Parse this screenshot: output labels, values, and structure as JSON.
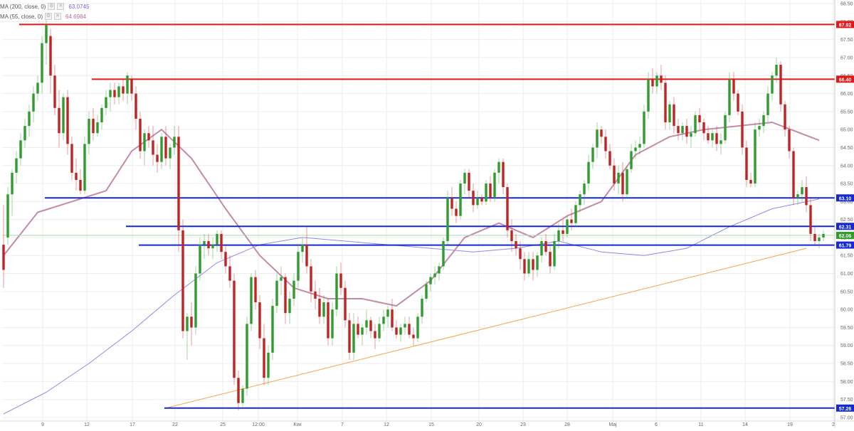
{
  "indicators": [
    {
      "label": "MA (200, close, 0)",
      "value": "63.0745",
      "color": "#6f66e6"
    },
    {
      "label": "MA (55, close, 0)",
      "value": "64.6984",
      "color": "#b46a9a"
    }
  ],
  "colors": {
    "up": "#2e9d2e",
    "down": "#c42222",
    "resistance": "#e01818",
    "support": "#1428d6",
    "trend": "#f4a64a",
    "ma200": "#8f88ee",
    "ma55": "#c48aa9",
    "grid": "#eeeeee",
    "axis_text": "#666666",
    "crosshair": "#a9d9a9",
    "price_tag": "#2e9d2e"
  },
  "chart_data": {
    "type": "candlestick",
    "title": "",
    "x_tick_labels": [
      "9",
      "12",
      "17",
      "22",
      "25",
      "12:00",
      "Kwi",
      "7",
      "12",
      "15",
      "20",
      "23",
      "28",
      "Maj",
      "6",
      "11",
      "14",
      "19",
      "2"
    ],
    "y_tick_labels": [
      "57.00",
      "57.50",
      "58.00",
      "58.50",
      "59.00",
      "59.50",
      "60.00",
      "60.50",
      "61.00",
      "61.50",
      "62.00",
      "62.50",
      "63.00",
      "63.50",
      "64.00",
      "64.50",
      "65.00",
      "65.50",
      "66.00",
      "66.50",
      "67.00",
      "67.50",
      "68.00",
      "68.50"
    ],
    "ylim": [
      56.9,
      68.6
    ],
    "grid": true,
    "candles": [
      [
        61.8,
        62.9,
        60.6,
        61.1
      ],
      [
        62.0,
        63.4,
        61.8,
        63.2
      ],
      [
        63.2,
        63.9,
        62.6,
        63.8
      ],
      [
        63.8,
        64.4,
        63.5,
        64.2
      ],
      [
        64.2,
        64.9,
        64.0,
        64.7
      ],
      [
        64.7,
        65.3,
        64.5,
        65.1
      ],
      [
        65.1,
        65.7,
        64.8,
        65.5
      ],
      [
        65.5,
        66.2,
        65.2,
        66.0
      ],
      [
        66.0,
        66.5,
        65.8,
        66.3
      ],
      [
        66.3,
        67.6,
        66.0,
        67.4
      ],
      [
        67.4,
        68.2,
        66.8,
        67.9
      ],
      [
        67.6,
        67.8,
        66.0,
        66.5
      ],
      [
        66.5,
        66.8,
        65.4,
        65.6
      ],
      [
        65.6,
        66.1,
        64.5,
        64.9
      ],
      [
        64.9,
        66.0,
        64.7,
        65.9
      ],
      [
        65.9,
        66.1,
        64.3,
        64.6
      ],
      [
        64.6,
        64.8,
        63.6,
        63.8
      ],
      [
        63.8,
        64.2,
        63.3,
        63.6
      ],
      [
        63.6,
        63.9,
        63.2,
        63.3
      ],
      [
        63.3,
        64.8,
        63.2,
        64.6
      ],
      [
        64.6,
        65.5,
        64.3,
        65.3
      ],
      [
        65.3,
        65.6,
        64.7,
        64.9
      ],
      [
        64.9,
        65.4,
        64.8,
        65.2
      ],
      [
        65.2,
        65.7,
        65.0,
        65.6
      ],
      [
        65.6,
        66.1,
        65.4,
        65.9
      ],
      [
        65.9,
        66.3,
        65.5,
        66.1
      ],
      [
        66.1,
        66.3,
        65.7,
        65.9
      ],
      [
        65.9,
        66.3,
        65.7,
        66.2
      ],
      [
        66.2,
        66.4,
        65.8,
        66.0
      ],
      [
        66.0,
        66.6,
        65.7,
        66.5
      ],
      [
        66.4,
        66.5,
        65.8,
        66.0
      ],
      [
        66.0,
        66.2,
        65.0,
        65.3
      ],
      [
        65.3,
        65.5,
        64.2,
        64.4
      ],
      [
        64.4,
        65.0,
        64.0,
        64.9
      ],
      [
        64.9,
        65.1,
        64.5,
        64.7
      ],
      [
        64.7,
        65.1,
        64.0,
        64.3
      ],
      [
        64.3,
        64.6,
        63.8,
        64.1
      ],
      [
        64.1,
        64.9,
        63.9,
        64.8
      ],
      [
        64.8,
        65.1,
        64.0,
        64.2
      ],
      [
        64.2,
        64.6,
        63.9,
        64.5
      ],
      [
        64.5,
        65.1,
        64.3,
        64.8
      ],
      [
        64.8,
        65.1,
        61.6,
        62.2
      ],
      [
        62.2,
        62.5,
        59.2,
        59.4
      ],
      [
        59.4,
        59.9,
        58.6,
        59.8
      ],
      [
        59.8,
        60.2,
        59.0,
        59.5
      ],
      [
        59.5,
        61.2,
        59.3,
        61.0
      ],
      [
        61.0,
        62.0,
        60.8,
        61.8
      ],
      [
        61.8,
        62.1,
        61.4,
        61.9
      ],
      [
        61.9,
        62.1,
        61.5,
        61.7
      ],
      [
        61.7,
        62.0,
        61.4,
        61.8
      ],
      [
        61.8,
        62.2,
        61.6,
        62.1
      ],
      [
        62.1,
        62.2,
        61.4,
        61.6
      ],
      [
        61.6,
        61.8,
        61.0,
        61.2
      ],
      [
        61.2,
        61.5,
        60.6,
        60.8
      ],
      [
        60.8,
        61.0,
        57.9,
        58.1
      ],
      [
        58.1,
        58.3,
        57.2,
        57.4
      ],
      [
        57.4,
        57.9,
        57.3,
        57.8
      ],
      [
        57.8,
        59.8,
        57.6,
        59.6
      ],
      [
        59.6,
        61.0,
        59.4,
        60.9
      ],
      [
        60.9,
        61.1,
        60.0,
        60.2
      ],
      [
        60.2,
        60.4,
        58.9,
        59.2
      ],
      [
        59.2,
        59.6,
        57.9,
        58.1
      ],
      [
        58.1,
        59.0,
        57.9,
        58.8
      ],
      [
        58.8,
        60.3,
        58.6,
        60.1
      ],
      [
        60.1,
        61.0,
        59.9,
        60.8
      ],
      [
        60.8,
        61.2,
        60.4,
        60.9
      ],
      [
        60.9,
        61.0,
        59.6,
        59.9
      ],
      [
        59.9,
        60.5,
        59.6,
        60.3
      ],
      [
        60.3,
        61.0,
        60.1,
        60.8
      ],
      [
        60.8,
        61.8,
        60.6,
        61.6
      ],
      [
        61.6,
        62.0,
        61.3,
        61.8
      ],
      [
        61.8,
        62.3,
        61.0,
        61.2
      ],
      [
        61.2,
        61.4,
        60.2,
        60.5
      ],
      [
        60.5,
        60.8,
        60.0,
        60.3
      ],
      [
        60.3,
        60.6,
        59.6,
        59.8
      ],
      [
        59.8,
        60.4,
        59.6,
        60.2
      ],
      [
        60.2,
        60.3,
        59.0,
        59.2
      ],
      [
        59.2,
        60.2,
        59.0,
        60.0
      ],
      [
        60.0,
        61.2,
        59.8,
        61.0
      ],
      [
        61.0,
        61.3,
        60.4,
        60.6
      ],
      [
        60.6,
        60.8,
        59.5,
        59.7
      ],
      [
        59.7,
        59.9,
        58.6,
        58.8
      ],
      [
        58.8,
        59.9,
        58.6,
        59.6
      ],
      [
        59.6,
        59.8,
        59.2,
        59.3
      ],
      [
        59.3,
        59.6,
        59.0,
        59.5
      ],
      [
        59.5,
        60.0,
        59.3,
        59.7
      ],
      [
        59.7,
        59.8,
        59.2,
        59.4
      ],
      [
        59.4,
        59.6,
        58.9,
        59.2
      ],
      [
        59.2,
        59.8,
        59.1,
        59.6
      ],
      [
        59.6,
        60.0,
        59.4,
        59.8
      ],
      [
        59.8,
        60.1,
        59.5,
        60.0
      ],
      [
        60.0,
        60.3,
        59.4,
        59.5
      ],
      [
        59.5,
        59.7,
        59.2,
        59.3
      ],
      [
        59.3,
        59.6,
        59.1,
        59.5
      ],
      [
        59.5,
        59.8,
        59.3,
        59.6
      ],
      [
        59.6,
        59.8,
        59.2,
        59.3
      ],
      [
        59.3,
        59.5,
        59.0,
        59.2
      ],
      [
        59.2,
        59.9,
        59.1,
        59.8
      ],
      [
        59.8,
        60.4,
        59.6,
        60.3
      ],
      [
        60.3,
        60.8,
        60.2,
        60.7
      ],
      [
        60.7,
        61.0,
        60.5,
        60.9
      ],
      [
        60.9,
        61.2,
        60.7,
        61.0
      ],
      [
        61.0,
        61.3,
        60.8,
        61.2
      ],
      [
        61.2,
        62.0,
        61.1,
        61.9
      ],
      [
        61.9,
        63.3,
        61.8,
        63.1
      ],
      [
        63.1,
        63.4,
        62.6,
        62.8
      ],
      [
        62.8,
        63.0,
        62.4,
        62.6
      ],
      [
        62.6,
        63.6,
        62.5,
        63.5
      ],
      [
        63.5,
        63.9,
        63.2,
        63.8
      ],
      [
        63.8,
        63.9,
        63.1,
        63.3
      ],
      [
        63.3,
        63.5,
        62.7,
        62.9
      ],
      [
        62.9,
        63.3,
        62.8,
        63.1
      ],
      [
        63.1,
        63.2,
        62.9,
        63.0
      ],
      [
        63.0,
        63.6,
        62.9,
        63.5
      ],
      [
        63.5,
        63.7,
        63.0,
        63.1
      ],
      [
        63.1,
        63.9,
        63.0,
        63.8
      ],
      [
        63.8,
        64.2,
        63.5,
        64.1
      ],
      [
        64.1,
        64.2,
        63.2,
        63.4
      ],
      [
        63.4,
        63.5,
        62.0,
        62.2
      ],
      [
        62.2,
        62.5,
        61.6,
        61.9
      ],
      [
        61.9,
        62.1,
        61.5,
        61.7
      ],
      [
        61.7,
        61.9,
        61.1,
        61.4
      ],
      [
        61.4,
        61.6,
        60.8,
        61.0
      ],
      [
        61.0,
        61.6,
        60.9,
        61.4
      ],
      [
        61.4,
        61.6,
        60.8,
        61.1
      ],
      [
        61.1,
        61.6,
        60.9,
        61.5
      ],
      [
        61.5,
        62.0,
        61.3,
        61.9
      ],
      [
        61.9,
        62.1,
        61.5,
        61.6
      ],
      [
        61.6,
        61.8,
        61.0,
        61.2
      ],
      [
        61.2,
        62.1,
        61.1,
        61.9
      ],
      [
        61.9,
        62.4,
        61.7,
        62.2
      ],
      [
        62.2,
        62.5,
        61.9,
        62.1
      ],
      [
        62.1,
        62.6,
        62.0,
        62.5
      ],
      [
        62.5,
        62.8,
        62.2,
        62.4
      ],
      [
        62.4,
        63.0,
        62.3,
        62.9
      ],
      [
        62.9,
        63.3,
        62.7,
        63.2
      ],
      [
        63.2,
        63.6,
        62.9,
        63.5
      ],
      [
        63.5,
        64.3,
        63.3,
        64.1
      ],
      [
        64.1,
        64.6,
        63.9,
        64.5
      ],
      [
        64.5,
        65.2,
        64.2,
        65.0
      ],
      [
        65.0,
        65.1,
        64.6,
        64.8
      ],
      [
        64.8,
        65.0,
        64.2,
        64.4
      ],
      [
        64.4,
        64.6,
        63.9,
        64.0
      ],
      [
        64.0,
        64.2,
        63.3,
        63.5
      ],
      [
        63.5,
        64.0,
        63.2,
        63.8
      ],
      [
        63.8,
        64.1,
        63.0,
        63.2
      ],
      [
        63.2,
        64.0,
        63.1,
        63.9
      ],
      [
        63.9,
        64.6,
        63.8,
        64.4
      ],
      [
        64.4,
        64.7,
        64.2,
        64.5
      ],
      [
        64.5,
        64.8,
        64.3,
        64.6
      ],
      [
        64.6,
        65.7,
        64.5,
        65.5
      ],
      [
        65.5,
        66.6,
        65.3,
        66.4
      ],
      [
        66.4,
        66.7,
        66.0,
        66.2
      ],
      [
        66.2,
        66.6,
        66.0,
        66.5
      ],
      [
        66.5,
        66.8,
        66.1,
        66.3
      ],
      [
        66.3,
        66.5,
        65.0,
        65.2
      ],
      [
        65.2,
        65.8,
        65.0,
        65.7
      ],
      [
        65.7,
        65.9,
        64.9,
        65.1
      ],
      [
        65.1,
        65.3,
        64.7,
        64.9
      ],
      [
        64.9,
        65.2,
        64.7,
        65.1
      ],
      [
        65.1,
        65.3,
        64.6,
        64.8
      ],
      [
        64.8,
        65.1,
        64.5,
        64.9
      ],
      [
        64.9,
        65.5,
        64.8,
        65.4
      ],
      [
        65.4,
        65.6,
        65.0,
        65.2
      ],
      [
        65.2,
        65.3,
        64.7,
        64.9
      ],
      [
        64.9,
        65.1,
        64.6,
        64.7
      ],
      [
        64.7,
        65.0,
        64.5,
        64.9
      ],
      [
        64.9,
        65.1,
        64.4,
        64.6
      ],
      [
        64.6,
        64.9,
        64.3,
        64.7
      ],
      [
        64.7,
        65.5,
        64.6,
        65.4
      ],
      [
        65.4,
        66.6,
        65.2,
        66.4
      ],
      [
        66.4,
        66.6,
        65.8,
        66.0
      ],
      [
        66.0,
        66.1,
        65.4,
        65.5
      ],
      [
        65.5,
        65.7,
        64.3,
        64.5
      ],
      [
        64.5,
        64.7,
        63.4,
        63.6
      ],
      [
        63.6,
        63.8,
        63.4,
        63.5
      ],
      [
        63.5,
        65.2,
        63.4,
        65.0
      ],
      [
        65.0,
        65.3,
        64.8,
        65.1
      ],
      [
        65.1,
        65.5,
        64.9,
        65.4
      ],
      [
        65.4,
        66.2,
        65.2,
        66.0
      ],
      [
        66.0,
        66.6,
        65.8,
        66.5
      ],
      [
        66.5,
        67.0,
        66.3,
        66.8
      ],
      [
        66.8,
        66.9,
        65.5,
        65.7
      ],
      [
        65.7,
        65.8,
        64.8,
        65.0
      ],
      [
        65.0,
        65.1,
        64.2,
        64.4
      ],
      [
        64.4,
        64.5,
        62.9,
        63.1
      ],
      [
        63.1,
        63.3,
        62.9,
        63.2
      ],
      [
        63.2,
        63.6,
        63.0,
        63.4
      ],
      [
        63.4,
        63.7,
        62.7,
        62.9
      ],
      [
        62.9,
        63.1,
        61.9,
        62.1
      ],
      [
        62.1,
        62.3,
        61.8,
        61.9
      ],
      [
        61.9,
        62.1,
        61.7,
        62.0
      ],
      [
        62.0,
        62.2,
        61.9,
        62.1
      ]
    ],
    "levels": [
      {
        "kind": "resistance",
        "value": 67.92,
        "label": "67.92",
        "from": 4
      },
      {
        "kind": "resistance",
        "value": 66.4,
        "label": "66.40",
        "from": 21
      },
      {
        "kind": "support",
        "value": 63.1,
        "label": "63.10",
        "from": 10
      },
      {
        "kind": "support",
        "value": 62.31,
        "label": "62.31",
        "from": 29
      },
      {
        "kind": "support",
        "value": 61.79,
        "label": "61.79",
        "from": 32
      },
      {
        "kind": "support",
        "value": 57.26,
        "label": "57.26",
        "from": 38
      }
    ],
    "last_price": {
      "value": 62.06,
      "label": "62.06"
    },
    "trendline": {
      "points": [
        [
          38,
          57.26
        ],
        [
          188,
          61.7
        ]
      ]
    },
    "ma200": [
      [
        0,
        57.1
      ],
      [
        10,
        57.7
      ],
      [
        20,
        58.5
      ],
      [
        30,
        59.4
      ],
      [
        40,
        60.4
      ],
      [
        50,
        61.3
      ],
      [
        60,
        61.8
      ],
      [
        70,
        62.0
      ],
      [
        80,
        61.9
      ],
      [
        90,
        61.8
      ],
      [
        100,
        61.7
      ],
      [
        110,
        61.6
      ],
      [
        120,
        61.7
      ],
      [
        130,
        61.9
      ],
      [
        140,
        61.6
      ],
      [
        150,
        61.5
      ],
      [
        160,
        61.7
      ],
      [
        170,
        62.3
      ],
      [
        180,
        62.8
      ],
      [
        191,
        63.07
      ]
    ],
    "ma55": [
      [
        0,
        61.5
      ],
      [
        8,
        62.7
      ],
      [
        16,
        63.0
      ],
      [
        24,
        63.3
      ],
      [
        30,
        64.4
      ],
      [
        37,
        65.0
      ],
      [
        44,
        64.2
      ],
      [
        52,
        62.8
      ],
      [
        60,
        61.5
      ],
      [
        68,
        60.6
      ],
      [
        76,
        60.3
      ],
      [
        84,
        60.3
      ],
      [
        92,
        60.1
      ],
      [
        100,
        60.8
      ],
      [
        108,
        62.0
      ],
      [
        116,
        62.4
      ],
      [
        124,
        62.0
      ],
      [
        132,
        62.6
      ],
      [
        140,
        63.0
      ],
      [
        148,
        64.3
      ],
      [
        156,
        64.8
      ],
      [
        164,
        65.0
      ],
      [
        172,
        65.1
      ],
      [
        180,
        65.2
      ],
      [
        191,
        64.7
      ]
    ],
    "tick_label_colors": [
      "#e01818",
      "#e01818",
      "#1428d6",
      "#1428d6",
      "#2e9d2e",
      "#1428d6",
      "#1428d6"
    ]
  }
}
